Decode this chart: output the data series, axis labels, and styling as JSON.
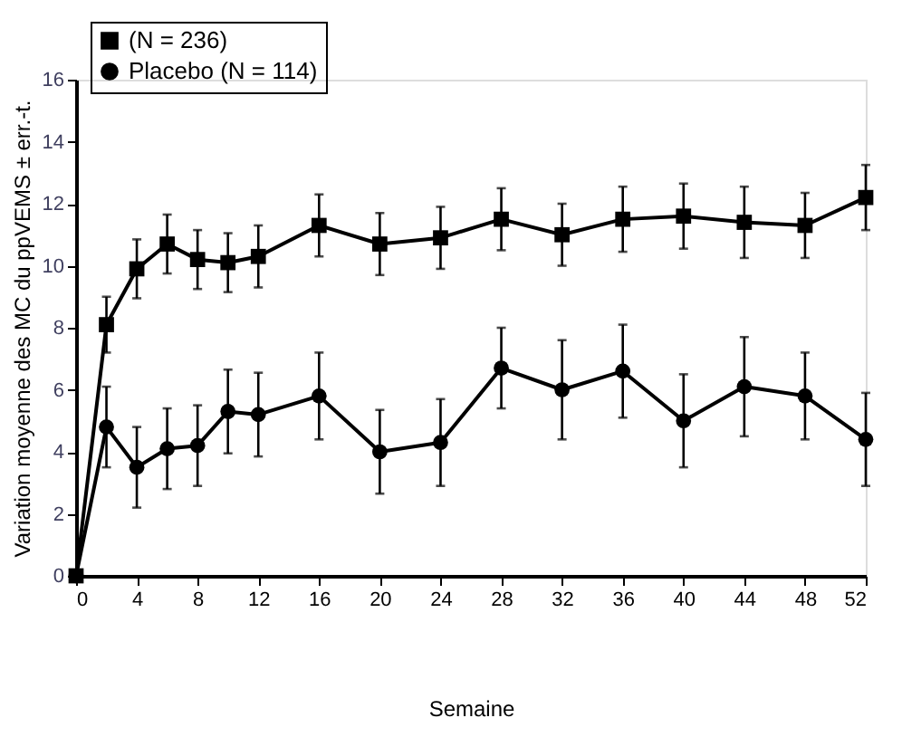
{
  "chart_data": {
    "type": "line",
    "xlabel": "Semaine",
    "ylabel": "Variation moyenne des MC du ppVEMS ± err.-t.",
    "x": [
      0,
      2,
      4,
      6,
      8,
      10,
      12,
      16,
      20,
      24,
      28,
      32,
      36,
      40,
      44,
      48,
      52
    ],
    "xlim": [
      0,
      52
    ],
    "xticks": [
      0,
      4,
      8,
      12,
      16,
      20,
      24,
      28,
      32,
      36,
      40,
      44,
      48,
      52
    ],
    "ylim": [
      0,
      16
    ],
    "yticks": [
      0,
      2,
      4,
      6,
      8,
      10,
      12,
      14,
      16
    ],
    "grid": false,
    "legend": "top left",
    "line_style": "solid",
    "series": [
      {
        "name": "(N = 236)",
        "color": "#000000",
        "marker": "square",
        "values": [
          0,
          8.1,
          9.9,
          10.7,
          10.2,
          10.1,
          10.3,
          11.3,
          10.7,
          10.9,
          11.5,
          11.0,
          11.5,
          11.6,
          11.4,
          11.3,
          12.2
        ],
        "errors": [
          null,
          0.9,
          0.95,
          0.95,
          0.95,
          0.95,
          1.0,
          1.0,
          1.0,
          1.0,
          1.0,
          1.0,
          1.05,
          1.05,
          1.15,
          1.05,
          1.05
        ]
      },
      {
        "name": "Placebo (N = 114)",
        "color": "#000000",
        "marker": "circle",
        "values": [
          0,
          4.8,
          3.5,
          4.1,
          4.2,
          5.3,
          5.2,
          5.8,
          4.0,
          4.3,
          6.7,
          6.0,
          6.6,
          5.0,
          6.1,
          5.8,
          4.4
        ],
        "errors": [
          null,
          1.3,
          1.3,
          1.3,
          1.3,
          1.35,
          1.35,
          1.4,
          1.35,
          1.4,
          1.3,
          1.6,
          1.5,
          1.5,
          1.6,
          1.4,
          1.5
        ]
      }
    ]
  }
}
